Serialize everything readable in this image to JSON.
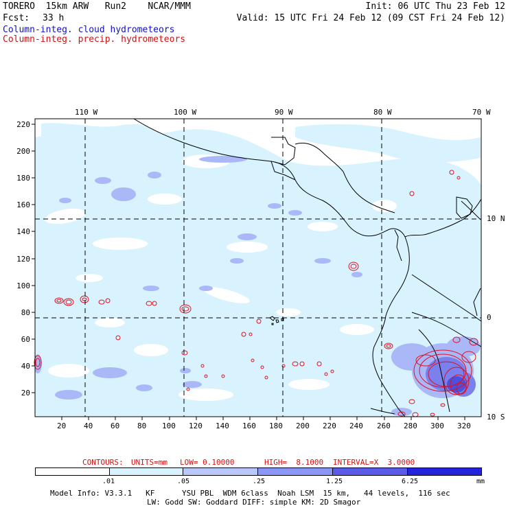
{
  "header": {
    "model_line": "TORERO  15km ARW   Run2    NCAR/MMM",
    "init": "Init: 06 UTC Thu 23 Feb 12",
    "fcst_label": "Fcst:",
    "fcst_hours": "33 h",
    "valid": "Valid: 15 UTC Fri 24 Feb 12 (09 CST Fri 24 Feb 12)",
    "field_cloud": "Column-integ. cloud hydrometeors",
    "field_precip": "Column-integ. precip. hydrometeors"
  },
  "top_longitude_labels": [
    "110 W",
    "100 W",
    "90 W",
    "80 W",
    "70 W"
  ],
  "right_latitude_labels": [
    "10 N",
    "0",
    "10 S"
  ],
  "y_ticks": [
    "220",
    "200",
    "180",
    "160",
    "140",
    "120",
    "100",
    "80",
    "60",
    "40",
    "20"
  ],
  "x_ticks": [
    "20",
    "40",
    "60",
    "80",
    "100",
    "120",
    "140",
    "160",
    "180",
    "200",
    "220",
    "240",
    "260",
    "280",
    "300",
    "320"
  ],
  "contour_info": {
    "contours": "CONTOURS:",
    "units": "UNITS=mm",
    "low": "LOW= 0.10000",
    "high": "HIGH=  8.1000",
    "interval": "INTERVAL=X  3.0000"
  },
  "colorbar": {
    "labels": [
      ".01",
      ".05",
      ".25",
      "1.25",
      "6.25",
      "mm"
    ],
    "colors": [
      "#ffffff",
      "#d8f2fe",
      "#b8c8fc",
      "#8c96f4",
      "#5a5ce8",
      "#2424dc"
    ]
  },
  "footer": {
    "line1": "Model Info: V3.3.1   KF      YSU PBL  WDM 6class  Noah LSM  15 km,   44 levels,  116 sec",
    "line2": "LW: Godd SW: Goddard DIFF: simple KM: 2D Smagor"
  },
  "colors": {
    "cloud_light": "#d8f2fe",
    "cloud_medium": "#aab8f8",
    "precip_contour": "#e01020",
    "title_blue": "#1010c8",
    "title_red": "#d01010"
  }
}
